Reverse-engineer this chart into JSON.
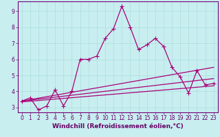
{
  "xlabel": "Windchill (Refroidissement éolien,°C)",
  "ylabel": "",
  "bg_color": "#c8eef0",
  "line_color": "#aa0077",
  "grid_color": "#aadddd",
  "axis_color": "#770077",
  "xlim": [
    -0.5,
    23.5
  ],
  "ylim": [
    2.7,
    9.6
  ],
  "xticks": [
    0,
    1,
    2,
    3,
    4,
    5,
    6,
    7,
    8,
    9,
    10,
    11,
    12,
    13,
    14,
    15,
    16,
    17,
    18,
    19,
    20,
    21,
    22,
    23
  ],
  "yticks": [
    3,
    4,
    5,
    6,
    7,
    8,
    9
  ],
  "series": [
    {
      "x": [
        0,
        1,
        2,
        3,
        4,
        5,
        6,
        7,
        8,
        9,
        10,
        11,
        12,
        13,
        14,
        15,
        16,
        17,
        18,
        19,
        20,
        21,
        22,
        23
      ],
      "y": [
        3.4,
        3.6,
        2.85,
        3.1,
        4.1,
        3.1,
        4.0,
        6.0,
        6.0,
        6.2,
        7.3,
        7.9,
        9.3,
        8.0,
        6.6,
        6.9,
        7.3,
        6.8,
        5.5,
        4.9,
        3.9,
        5.3,
        4.4,
        4.5
      ],
      "marker": "+",
      "linewidth": 0.9,
      "markersize": 4,
      "linestyle": "-"
    },
    {
      "x": [
        0,
        23
      ],
      "y": [
        3.4,
        5.5
      ],
      "marker": null,
      "linewidth": 0.9,
      "markersize": 0,
      "linestyle": "-"
    },
    {
      "x": [
        0,
        23
      ],
      "y": [
        3.4,
        4.8
      ],
      "marker": null,
      "linewidth": 0.9,
      "markersize": 0,
      "linestyle": "-"
    },
    {
      "x": [
        0,
        23
      ],
      "y": [
        3.35,
        4.35
      ],
      "marker": null,
      "linewidth": 0.9,
      "markersize": 0,
      "linestyle": "-"
    }
  ],
  "font_color": "#660066",
  "tick_fontsize": 5.5,
  "label_fontsize": 6.5
}
